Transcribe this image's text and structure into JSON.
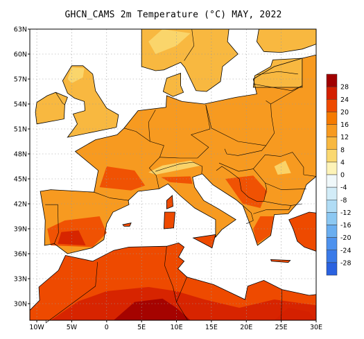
{
  "title": "GHCN_CAMS 2m Temperature (°C) MAY, 2022",
  "lat_labels": [
    "63N",
    "60N",
    "57N",
    "54N",
    "51N",
    "48N",
    "45N",
    "42N",
    "39N",
    "36N",
    "33N",
    "30N"
  ],
  "lon_labels": [
    "10W",
    "5W",
    "0",
    "5E",
    "10E",
    "15E",
    "20E",
    "25E",
    "30E"
  ],
  "colorbar": {
    "labels": [
      "28",
      "24",
      "20",
      "16",
      "12",
      "8",
      "4",
      "0",
      "-4",
      "-8",
      "-12",
      "-16",
      "-20",
      "-24",
      "-28"
    ],
    "colors": [
      "#a00000",
      "#d42000",
      "#ee4a00",
      "#f57a00",
      "#f79a20",
      "#f8b840",
      "#fad870",
      "#fdf3b8",
      "#f0f8fa",
      "#d2ecf8",
      "#b0dcf5",
      "#8cc8f2",
      "#6aaef0",
      "#4e92ee",
      "#3a7ae8",
      "#2a62e0"
    ]
  },
  "colors": {
    "land_warm": "#f79a20",
    "land_cool": "#f8b840",
    "land_hot": "#ee4a00",
    "land_very_hot": "#d42000",
    "land_extreme": "#a00000",
    "land_mild": "#fad870",
    "sea": "#ffffff",
    "grid": "#9a9a9a",
    "border": "#000000"
  }
}
